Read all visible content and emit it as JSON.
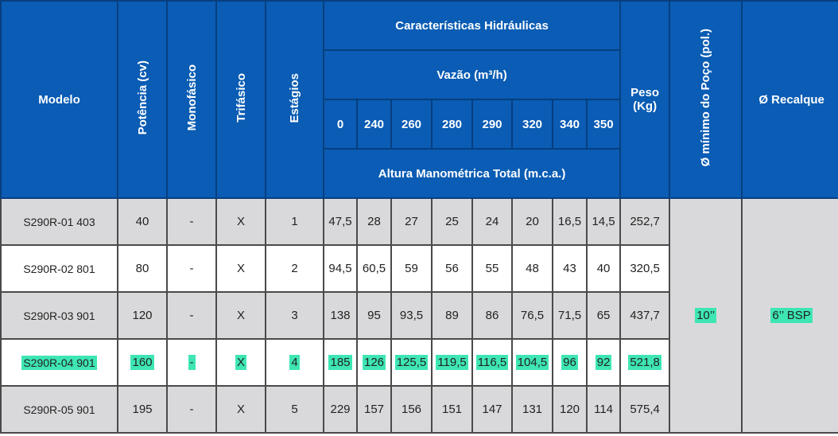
{
  "headers": {
    "modelo": "Modelo",
    "potencia": "Potência (cv)",
    "monofasico": "Monofásico",
    "trifasico": "Trifásico",
    "estagios": "Estágios",
    "caracteristicas": "Características Hidráulicas",
    "vazao": "Vazão (m³/h)",
    "flows": [
      "0",
      "240",
      "260",
      "280",
      "290",
      "320",
      "340",
      "350"
    ],
    "altura": "Altura Manométrica Total (m.c.a.)",
    "peso": "Peso (Kg)",
    "poco": "Ø mínimo do Poço (pol.)",
    "recalque": "Ø Recalque"
  },
  "rows": [
    {
      "modelo": "S290R-01 403",
      "potencia": "40",
      "mono": "-",
      "tri": "X",
      "estagios": "1",
      "alturas": [
        "47,5",
        "28",
        "27",
        "25",
        "24",
        "20",
        "16,5",
        "14,5"
      ],
      "peso": "252,7"
    },
    {
      "modelo": "S290R-02 801",
      "potencia": "80",
      "mono": "-",
      "tri": "X",
      "estagios": "2",
      "alturas": [
        "94,5",
        "60,5",
        "59",
        "56",
        "55",
        "48",
        "43",
        "40"
      ],
      "peso": "320,5"
    },
    {
      "modelo": "S290R-03 901",
      "potencia": "120",
      "mono": "-",
      "tri": "X",
      "estagios": "3",
      "alturas": [
        "138",
        "95",
        "93,5",
        "89",
        "86",
        "76,5",
        "71,5",
        "65"
      ],
      "peso": "437,7"
    },
    {
      "modelo": "S290R-04 901",
      "potencia": "160",
      "mono": "-",
      "tri": "X",
      "estagios": "4",
      "alturas": [
        "185",
        "126",
        "125,5",
        "119,5",
        "116,5",
        "104,5",
        "96",
        "92"
      ],
      "peso": "521,8"
    },
    {
      "modelo": "S290R-05 901",
      "potencia": "195",
      "mono": "-",
      "tri": "X",
      "estagios": "5",
      "alturas": [
        "229",
        "157",
        "156",
        "151",
        "147",
        "131",
        "120",
        "114"
      ],
      "peso": "575,4"
    }
  ],
  "poco_value": "10’’",
  "recalque_value": "6’’ BSP",
  "highlight_color": "#3ee6b4",
  "header_color": "#0a5cb4"
}
